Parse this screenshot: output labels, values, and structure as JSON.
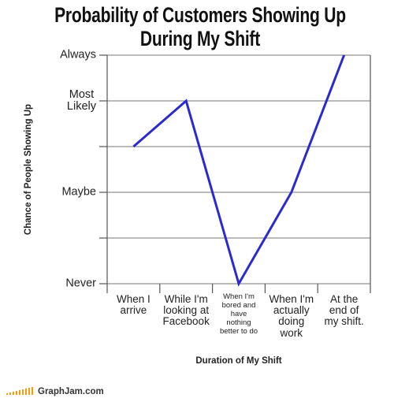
{
  "chart_data": {
    "type": "line",
    "title": "Probability of Customers Showing Up\nDuring My Shift",
    "y_label": "Chance of People Showing Up",
    "x_label": "Duration of My Shift",
    "categories": [
      "When I\narrive",
      "While I'm\nlooking at\nFacebook",
      "When I'm\nbored and\nhave\nnothing\nbetter to do",
      "When I'm\nactually\ndoing\nwork",
      "At the\nend of\nmy shift."
    ],
    "values": [
      3,
      4,
      0,
      2,
      5
    ],
    "color": "#2a2ad0",
    "ylim": [
      0,
      5
    ],
    "yticks": [
      {
        "value": 0,
        "label": "Never"
      },
      {
        "value": 1,
        "label": null
      },
      {
        "value": 2,
        "label": "Maybe"
      },
      {
        "value": 3,
        "label": null
      },
      {
        "value": 4,
        "label": "Most\nLikely"
      },
      {
        "value": 5,
        "label": "Always"
      }
    ],
    "grid": true
  },
  "footer": "GraphJam.com"
}
